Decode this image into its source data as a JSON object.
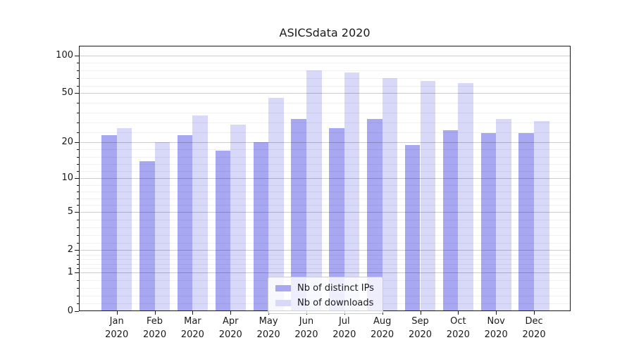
{
  "chart_data": {
    "type": "bar",
    "title": "ASICSdata 2020",
    "categories": [
      "Jan\n2020",
      "Feb\n2020",
      "Mar\n2020",
      "Apr\n2020",
      "May\n2020",
      "Jun\n2020",
      "Jul\n2020",
      "Aug\n2020",
      "Sep\n2020",
      "Oct\n2020",
      "Nov\n2020",
      "Dec\n2020"
    ],
    "series": [
      {
        "name": "Nb of distinct IPs",
        "color": "#a8a8f2",
        "values": [
          23,
          14,
          23,
          17,
          20,
          31,
          26,
          31,
          19,
          25,
          24,
          24
        ]
      },
      {
        "name": "Nb of downloads",
        "color": "#d8d8f8",
        "values": [
          26,
          20,
          33,
          28,
          46,
          76,
          73,
          66,
          63,
          60,
          31,
          30
        ]
      }
    ],
    "xlabel": "",
    "ylabel": "",
    "yscale": "log1p",
    "ylim": [
      0,
      119
    ],
    "yticks": [
      0,
      1,
      2,
      5,
      10,
      20,
      50,
      100
    ],
    "grid": {
      "major": true,
      "minor": true,
      "minor_divisions_per_interval": 5
    },
    "legend_position": "lower center",
    "style": {
      "background": "#ffffff",
      "spine_color": "#1a1a1a",
      "major_grid_color": "#cccccc",
      "minor_grid_color": "#f0f0f0",
      "legend_border_color": "#cccccc"
    }
  }
}
